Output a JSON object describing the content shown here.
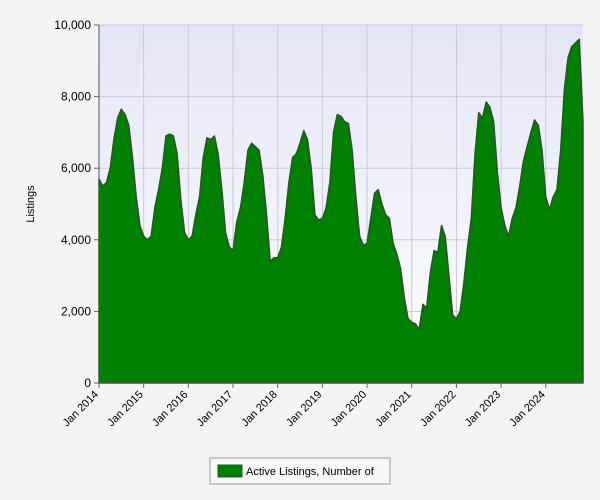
{
  "chart_data": {
    "type": "area",
    "y_label": "Listings",
    "categories": [
      "Jan 2014",
      null,
      null,
      null,
      null,
      null,
      null,
      null,
      null,
      null,
      null,
      null,
      "Jan 2015",
      null,
      null,
      null,
      null,
      null,
      null,
      null,
      null,
      null,
      null,
      null,
      "Jan 2016",
      null,
      null,
      null,
      null,
      null,
      null,
      null,
      null,
      null,
      null,
      null,
      "Jan 2017",
      null,
      null,
      null,
      null,
      null,
      null,
      null,
      null,
      null,
      null,
      null,
      "Jan 2018",
      null,
      null,
      null,
      null,
      null,
      null,
      null,
      null,
      null,
      null,
      null,
      "Jan 2019",
      null,
      null,
      null,
      null,
      null,
      null,
      null,
      null,
      null,
      null,
      null,
      "Jan 2020",
      null,
      null,
      null,
      null,
      null,
      null,
      null,
      null,
      null,
      null,
      null,
      "Jan 2021",
      null,
      null,
      null,
      null,
      null,
      null,
      null,
      null,
      null,
      null,
      null,
      "Jan 2022",
      null,
      null,
      null,
      null,
      null,
      null,
      null,
      null,
      null,
      null,
      null,
      "Jan 2023",
      null,
      null,
      null,
      null,
      null,
      null,
      null,
      null,
      null,
      null,
      null,
      "Jan 2024",
      null,
      null,
      null,
      null,
      null,
      null,
      null,
      null,
      null,
      null
    ],
    "series": [
      {
        "name": "Active Listings, Number of",
        "color": "#008000",
        "values": [
          5700,
          5500,
          5600,
          6000,
          6800,
          7400,
          7650,
          7500,
          7200,
          6300,
          5200,
          4400,
          4100,
          4000,
          4100,
          4900,
          5400,
          6000,
          6900,
          6950,
          6900,
          6400,
          5100,
          4200,
          4000,
          4100,
          4700,
          5200,
          6300,
          6850,
          6800,
          6900,
          6400,
          5400,
          4200,
          3800,
          3700,
          4500,
          4900,
          5600,
          6500,
          6700,
          6600,
          6500,
          5800,
          4700,
          3400,
          3500,
          3500,
          3800,
          4600,
          5600,
          6300,
          6400,
          6700,
          7050,
          6800,
          6000,
          4700,
          4550,
          4600,
          4900,
          5600,
          7000,
          7500,
          7450,
          7300,
          7250,
          6500,
          5200,
          4100,
          3850,
          3900,
          4600,
          5300,
          5400,
          5000,
          4700,
          4600,
          3900,
          3600,
          3200,
          2400,
          1800,
          1700,
          1650,
          1500,
          2200,
          2100,
          3100,
          3700,
          3650,
          4400,
          4100,
          3000,
          1900,
          1800,
          2000,
          2800,
          3800,
          4600,
          6400,
          7550,
          7400,
          7850,
          7700,
          7300,
          5900,
          4900,
          4400,
          4100,
          4600,
          4900,
          5500,
          6200,
          6600,
          7000,
          7350,
          7200,
          6500,
          5200,
          4850,
          5200,
          5400,
          6500,
          8200,
          9100,
          9400,
          9500,
          9600,
          7300
        ]
      }
    ],
    "ylim": [
      0,
      10000
    ],
    "yticks": [
      0,
      {
        "value": 2000,
        "label": "2,000"
      },
      {
        "value": 4000,
        "label": "4,000"
      },
      {
        "value": 6000,
        "label": "6,000"
      },
      {
        "value": 8000,
        "label": "8,000"
      },
      {
        "value": 10000,
        "label": "10,000"
      }
    ],
    "grid": true,
    "legend": "bottom"
  }
}
